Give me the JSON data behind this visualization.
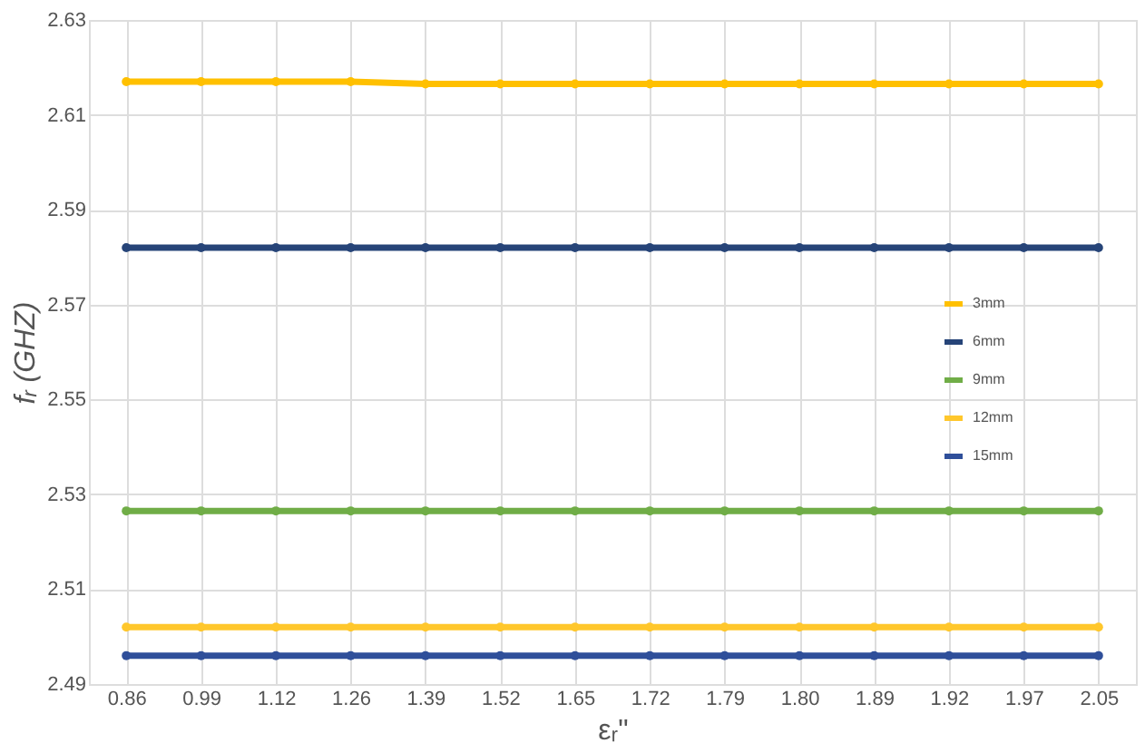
{
  "chart_data": {
    "type": "line",
    "xlabel": "εᵣ\"",
    "ylabel": "fᵣ (GHZ)",
    "categories": [
      "0.86",
      "0.99",
      "1.12",
      "1.26",
      "1.39",
      "1.52",
      "1.65",
      "1.72",
      "1.79",
      "1.80",
      "1.89",
      "1.92",
      "1.97",
      "2.05"
    ],
    "series": [
      {
        "name": "3mm",
        "color": "#ffc000",
        "values": [
          2.617,
          2.617,
          2.617,
          2.617,
          2.6165,
          2.6165,
          2.6165,
          2.6165,
          2.6165,
          2.6165,
          2.6165,
          2.6165,
          2.6165,
          2.6165
        ]
      },
      {
        "name": "6mm",
        "color": "#264478",
        "values": [
          2.582,
          2.582,
          2.582,
          2.582,
          2.582,
          2.582,
          2.582,
          2.582,
          2.582,
          2.582,
          2.582,
          2.582,
          2.582,
          2.582
        ]
      },
      {
        "name": "9mm",
        "color": "#70ad47",
        "values": [
          2.5265,
          2.5265,
          2.5265,
          2.5265,
          2.5265,
          2.5265,
          2.5265,
          2.5265,
          2.5265,
          2.5265,
          2.5265,
          2.5265,
          2.5265,
          2.5265
        ]
      },
      {
        "name": "12mm",
        "color": "#ffc72c",
        "values": [
          2.502,
          2.502,
          2.502,
          2.502,
          2.502,
          2.502,
          2.502,
          2.502,
          2.502,
          2.502,
          2.502,
          2.502,
          2.502,
          2.502
        ]
      },
      {
        "name": "15mm",
        "color": "#2f4f9a",
        "values": [
          2.496,
          2.496,
          2.496,
          2.496,
          2.496,
          2.496,
          2.496,
          2.496,
          2.496,
          2.496,
          2.496,
          2.496,
          2.496,
          2.496
        ]
      }
    ],
    "ylim": [
      2.49,
      2.63
    ],
    "yticks": [
      2.49,
      2.51,
      2.53,
      2.55,
      2.57,
      2.59,
      2.61,
      2.63
    ],
    "grid": true,
    "legend": "right",
    "marker": "circle",
    "line_style": "solid"
  }
}
